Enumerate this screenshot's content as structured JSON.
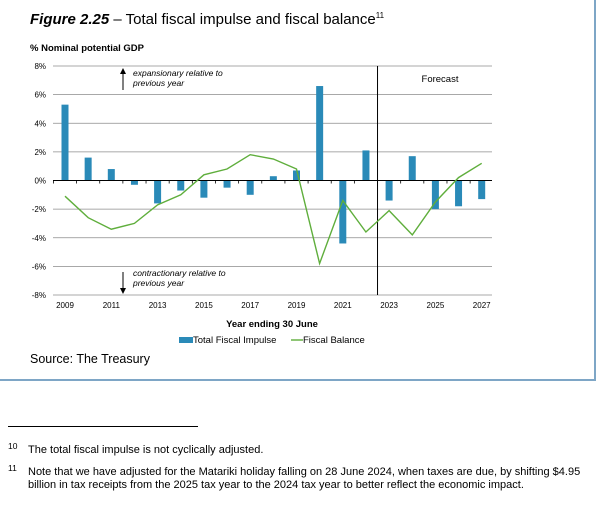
{
  "figure": {
    "number": "Figure 2.25",
    "dash": " – ",
    "title": "Total fiscal impulse and fiscal balance",
    "footnote_ref": "11"
  },
  "source": "Source: The Treasury",
  "footnotes": [
    {
      "num": "10",
      "text": "The total fiscal impulse is not cyclically adjusted."
    },
    {
      "num": "11",
      "text": "Note that we have adjusted for the Matariki holiday falling on 28 June 2024, when taxes are due, by shifting $4.95 billion in tax receipts from the 2025 tax year to the 2024 tax year to better reflect the economic impact."
    }
  ],
  "chart_data": {
    "type": "bar+line",
    "ylabel": "% Nominal potential GDP",
    "xlabel": "Year ending 30 June",
    "ylim": [
      -8,
      8
    ],
    "yticks": [
      "8%",
      "6%",
      "4%",
      "2%",
      "0%",
      "-2%",
      "-4%",
      "-6%",
      "-8%"
    ],
    "ytick_values": [
      8,
      6,
      4,
      2,
      0,
      -2,
      -4,
      -6,
      -8
    ],
    "x": [
      2009,
      2010,
      2011,
      2012,
      2013,
      2014,
      2015,
      2016,
      2017,
      2018,
      2019,
      2020,
      2021,
      2022,
      2023,
      2024,
      2025,
      2026,
      2027
    ],
    "xtick_labels": [
      "2009",
      "2011",
      "2013",
      "2015",
      "2017",
      "2019",
      "2021",
      "2023",
      "2025",
      "2027"
    ],
    "series": [
      {
        "name": "Total Fiscal Impulse",
        "type": "bar",
        "color": "#2a8ab8",
        "values": [
          5.3,
          1.6,
          0.8,
          -0.3,
          -1.6,
          -0.7,
          -1.2,
          -0.5,
          -1.0,
          0.3,
          0.7,
          6.6,
          -4.4,
          2.1,
          -1.4,
          1.7,
          -2.0,
          -1.8,
          -1.3
        ]
      },
      {
        "name": "Fiscal Balance",
        "type": "line",
        "color": "#5fae3c",
        "values": [
          -1.1,
          -2.6,
          -3.4,
          -3.0,
          -1.7,
          -1.0,
          0.4,
          0.8,
          1.8,
          1.5,
          0.8,
          -5.8,
          -1.4,
          -3.6,
          -2.1,
          -3.8,
          -1.5,
          0.2,
          1.2
        ]
      }
    ],
    "forecast_label": "Forecast",
    "forecast_start_after": 2022,
    "annotations": {
      "up": [
        "expansionary relative to",
        "previous year"
      ],
      "down": [
        "contractionary relative to",
        "previous year"
      ]
    },
    "legend_position": "bottom-center",
    "grid": true
  }
}
